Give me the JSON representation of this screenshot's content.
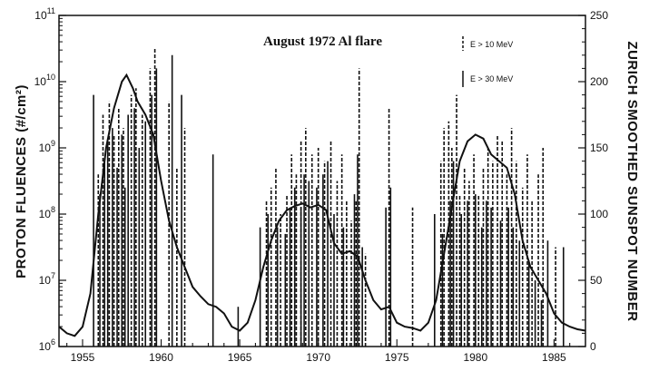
{
  "chart_data": {
    "type": "bar",
    "title": "August 1972 Al flare",
    "xlabel": "",
    "ylabel": "PROTON FLUENCES (#/cm2)",
    "ylabel_display": "PROTON FLUENCES (#/cm²)",
    "y2label": "ZURICH SMOOTHED SUNSPOT NUMBER",
    "xlim": [
      1953.5,
      1987
    ],
    "ylim_log10": [
      6,
      11
    ],
    "y2lim": [
      0,
      250
    ],
    "x_ticks": [
      1955,
      1960,
      1965,
      1970,
      1975,
      1980,
      1985
    ],
    "x_tick_labels": [
      "1955",
      "1960",
      "1965",
      "1970",
      "1975",
      "1980",
      "1985"
    ],
    "y_ticks_log10": [
      6,
      7,
      8,
      9,
      10,
      11
    ],
    "y2_ticks": [
      0,
      50,
      100,
      150,
      200,
      250
    ],
    "y2_tick_labels": [
      "0",
      "50",
      "100",
      "150",
      "200",
      "250"
    ],
    "legend": [
      {
        "label": "E > 10 MeV",
        "style": "dashed"
      },
      {
        "label": "E > 30 MeV",
        "style": "solid"
      }
    ],
    "series": [
      {
        "name": "E > 10 MeV",
        "style": "dashed",
        "points": [
          [
            1956.0,
            8.6
          ],
          [
            1956.3,
            9.5
          ],
          [
            1956.7,
            9.7
          ],
          [
            1957.0,
            9.2
          ],
          [
            1957.3,
            9.6
          ],
          [
            1957.6,
            9.3
          ],
          [
            1958.1,
            9.8
          ],
          [
            1958.4,
            9.9
          ],
          [
            1958.8,
            9.5
          ],
          [
            1959.3,
            10.2
          ],
          [
            1959.6,
            10.5
          ],
          [
            1960.5,
            9.7
          ],
          [
            1961.0,
            8.7
          ],
          [
            1961.5,
            9.3
          ],
          [
            1966.7,
            8.2
          ],
          [
            1967.0,
            8.4
          ],
          [
            1967.3,
            8.7
          ],
          [
            1967.6,
            8.0
          ],
          [
            1968.0,
            8.3
          ],
          [
            1968.3,
            8.9
          ],
          [
            1968.6,
            8.6
          ],
          [
            1968.9,
            9.1
          ],
          [
            1969.2,
            9.3
          ],
          [
            1969.6,
            8.9
          ],
          [
            1970.0,
            9.0
          ],
          [
            1970.4,
            8.8
          ],
          [
            1970.8,
            9.1
          ],
          [
            1971.2,
            8.5
          ],
          [
            1971.5,
            8.9
          ],
          [
            1971.8,
            8.2
          ],
          [
            1972.1,
            7.9
          ],
          [
            1972.4,
            8.2
          ],
          [
            1972.6,
            10.2
          ],
          [
            1973.0,
            7.4
          ],
          [
            1974.5,
            9.6
          ],
          [
            1976.0,
            8.1
          ],
          [
            1977.8,
            8.8
          ],
          [
            1978.0,
            9.3
          ],
          [
            1978.3,
            9.4
          ],
          [
            1978.5,
            9.0
          ],
          [
            1978.8,
            9.8
          ],
          [
            1979.0,
            8.3
          ],
          [
            1979.3,
            8.7
          ],
          [
            1979.6,
            8.5
          ],
          [
            1979.9,
            8.9
          ],
          [
            1980.2,
            8.3
          ],
          [
            1980.5,
            8.7
          ],
          [
            1980.8,
            9.0
          ],
          [
            1981.1,
            8.8
          ],
          [
            1981.4,
            9.2
          ],
          [
            1981.7,
            9.1
          ],
          [
            1982.0,
            8.6
          ],
          [
            1982.3,
            9.3
          ],
          [
            1982.6,
            8.8
          ],
          [
            1983.0,
            8.4
          ],
          [
            1983.3,
            8.9
          ],
          [
            1983.6,
            8.2
          ],
          [
            1984.0,
            8.6
          ],
          [
            1984.3,
            9.0
          ],
          [
            1985.1,
            7.5
          ]
        ]
      },
      {
        "name": "E > 30 MeV",
        "style": "solid",
        "points": [
          [
            1955.7,
            9.8
          ],
          [
            1956.1,
            8.3
          ],
          [
            1956.4,
            8.8
          ],
          [
            1956.6,
            9.1
          ],
          [
            1956.9,
            9.3
          ],
          [
            1957.2,
            8.7
          ],
          [
            1957.5,
            9.2
          ],
          [
            1957.7,
            8.4
          ],
          [
            1957.9,
            9.5
          ],
          [
            1958.3,
            9.6
          ],
          [
            1958.6,
            9.0
          ],
          [
            1959.0,
            9.4
          ],
          [
            1959.4,
            9.8
          ],
          [
            1959.7,
            10.2
          ],
          [
            1960.7,
            10.4
          ],
          [
            1961.3,
            9.8
          ],
          [
            1963.3,
            8.9
          ],
          [
            1964.9,
            6.6
          ],
          [
            1966.3,
            7.8
          ],
          [
            1966.8,
            8.0
          ],
          [
            1967.4,
            7.8
          ],
          [
            1967.9,
            7.7
          ],
          [
            1968.2,
            8.1
          ],
          [
            1968.5,
            8.4
          ],
          [
            1968.9,
            8.1
          ],
          [
            1969.1,
            8.6
          ],
          [
            1969.4,
            8.5
          ],
          [
            1969.9,
            8.4
          ],
          [
            1970.3,
            8.6
          ],
          [
            1970.6,
            8.8
          ],
          [
            1971.0,
            8.0
          ],
          [
            1971.6,
            7.8
          ],
          [
            1972.3,
            8.3
          ],
          [
            1972.5,
            8.9
          ],
          [
            1972.8,
            7.5
          ],
          [
            1974.3,
            8.1
          ],
          [
            1974.6,
            8.4
          ],
          [
            1977.4,
            8.0
          ],
          [
            1977.9,
            7.7
          ],
          [
            1978.4,
            8.2
          ],
          [
            1978.6,
            8.8
          ],
          [
            1979.1,
            8.0
          ],
          [
            1979.5,
            8.2
          ],
          [
            1980.0,
            8.3
          ],
          [
            1980.4,
            7.8
          ],
          [
            1980.7,
            8.2
          ],
          [
            1981.0,
            8.1
          ],
          [
            1981.6,
            7.9
          ],
          [
            1982.1,
            8.1
          ],
          [
            1982.4,
            7.8
          ],
          [
            1982.8,
            7.6
          ],
          [
            1983.4,
            7.3
          ],
          [
            1983.8,
            7.0
          ],
          [
            1984.2,
            6.7
          ],
          [
            1984.6,
            7.6
          ],
          [
            1985.6,
            7.5
          ]
        ]
      }
    ],
    "sunspot_curve": {
      "name": "Zurich smoothed sunspot number",
      "axis": "right",
      "points": [
        [
          1953.5,
          15
        ],
        [
          1954.0,
          10
        ],
        [
          1954.5,
          8
        ],
        [
          1955.0,
          15
        ],
        [
          1955.5,
          40
        ],
        [
          1956.0,
          100
        ],
        [
          1956.5,
          150
        ],
        [
          1957.0,
          180
        ],
        [
          1957.5,
          200
        ],
        [
          1957.8,
          205
        ],
        [
          1958.2,
          195
        ],
        [
          1958.5,
          185
        ],
        [
          1959.0,
          175
        ],
        [
          1959.5,
          160
        ],
        [
          1960.0,
          125
        ],
        [
          1960.5,
          95
        ],
        [
          1961.0,
          75
        ],
        [
          1961.5,
          60
        ],
        [
          1962.0,
          45
        ],
        [
          1962.5,
          38
        ],
        [
          1963.0,
          32
        ],
        [
          1963.5,
          30
        ],
        [
          1964.0,
          25
        ],
        [
          1964.5,
          15
        ],
        [
          1965.0,
          12
        ],
        [
          1965.5,
          18
        ],
        [
          1966.0,
          35
        ],
        [
          1966.5,
          60
        ],
        [
          1967.0,
          80
        ],
        [
          1967.5,
          95
        ],
        [
          1968.0,
          103
        ],
        [
          1968.5,
          106
        ],
        [
          1969.0,
          108
        ],
        [
          1969.5,
          105
        ],
        [
          1970.0,
          107
        ],
        [
          1970.5,
          103
        ],
        [
          1971.0,
          78
        ],
        [
          1971.5,
          70
        ],
        [
          1972.0,
          72
        ],
        [
          1972.5,
          68
        ],
        [
          1973.0,
          50
        ],
        [
          1973.5,
          35
        ],
        [
          1974.0,
          28
        ],
        [
          1974.5,
          30
        ],
        [
          1975.0,
          18
        ],
        [
          1975.5,
          15
        ],
        [
          1976.0,
          14
        ],
        [
          1976.5,
          12
        ],
        [
          1977.0,
          18
        ],
        [
          1977.5,
          35
        ],
        [
          1978.0,
          70
        ],
        [
          1978.5,
          105
        ],
        [
          1979.0,
          140
        ],
        [
          1979.5,
          155
        ],
        [
          1980.0,
          160
        ],
        [
          1980.5,
          157
        ],
        [
          1981.0,
          145
        ],
        [
          1981.5,
          140
        ],
        [
          1982.0,
          135
        ],
        [
          1982.5,
          115
        ],
        [
          1983.0,
          80
        ],
        [
          1983.5,
          60
        ],
        [
          1984.0,
          50
        ],
        [
          1984.5,
          40
        ],
        [
          1985.0,
          25
        ],
        [
          1985.5,
          18
        ],
        [
          1986.0,
          15
        ],
        [
          1986.5,
          13
        ],
        [
          1987.0,
          12
        ]
      ]
    }
  }
}
